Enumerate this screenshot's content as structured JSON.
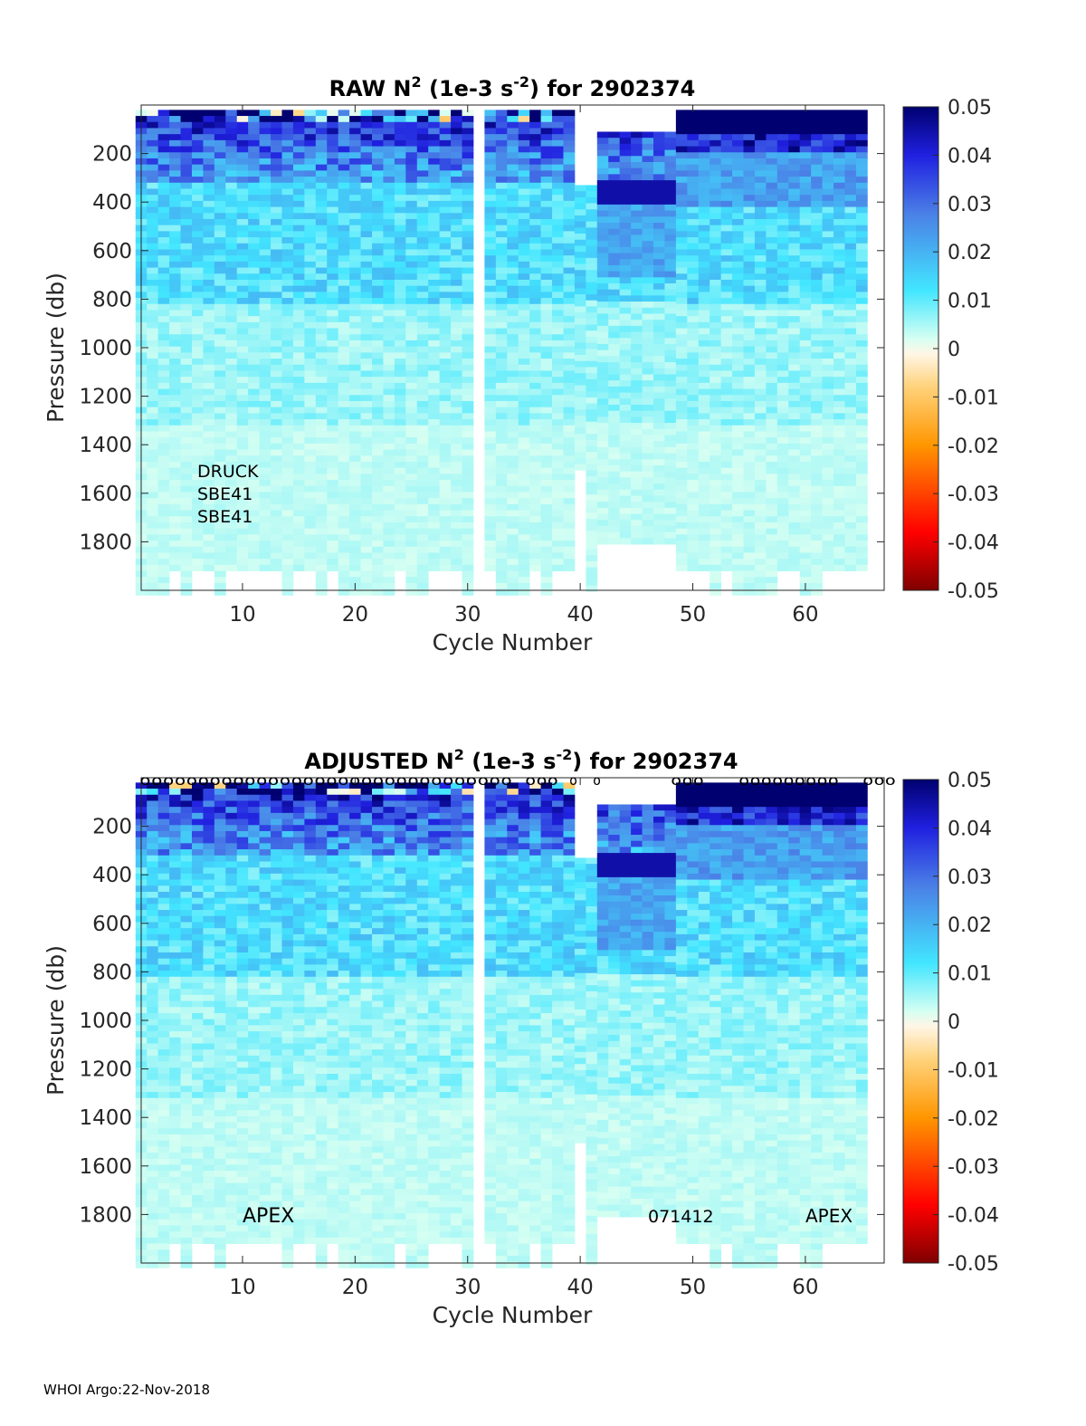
{
  "chart_data": [
    {
      "type": "heatmap",
      "title": "RAW N",
      "title_sup": "2",
      "title_units": " (1e-3 s",
      "title_units_sup": "-2",
      "title_tail": ") for 2902374",
      "xlabel": "Cycle Number",
      "ylabel": "Pressure (db)",
      "xlim": [
        1,
        67
      ],
      "ylim": [
        0,
        2000
      ],
      "xticks": [
        10,
        20,
        30,
        40,
        50,
        60
      ],
      "yticks": [
        200,
        400,
        600,
        800,
        1000,
        1200,
        1400,
        1600,
        1800
      ],
      "colorbar": {
        "min": -0.05,
        "max": 0.05,
        "ticks": [
          "0.05",
          "0.04",
          "0.03",
          "0.02",
          "0.01",
          "0",
          "-0.01",
          "-0.02",
          "-0.03",
          "-0.04",
          "-0.05"
        ]
      },
      "missing_cycles": [
        31
      ],
      "annotations": [
        "DRUCK",
        "SBE41",
        "SBE41"
      ],
      "markers": []
    },
    {
      "type": "heatmap",
      "title": "ADJUSTED N",
      "title_sup": "2",
      "title_units": " (1e-3 s",
      "title_units_sup": "-2",
      "title_tail": ") for 2902374",
      "xlabel": "Cycle Number",
      "ylabel": "Pressure (db)",
      "xlim": [
        1,
        67
      ],
      "ylim": [
        0,
        2000
      ],
      "xticks": [
        10,
        20,
        30,
        40,
        50,
        60
      ],
      "yticks": [
        200,
        400,
        600,
        800,
        1000,
        1200,
        1400,
        1600,
        1800
      ],
      "colorbar": {
        "min": -0.05,
        "max": 0.05,
        "ticks": [
          "0.05",
          "0.04",
          "0.03",
          "0.02",
          "0.01",
          "0",
          "-0.01",
          "-0.02",
          "-0.03",
          "-0.04",
          "-0.05"
        ]
      },
      "missing_cycles": [
        31
      ],
      "annotations": [
        "APEX",
        "071412",
        "APEX"
      ],
      "markers": [
        "oooooooooooooooooooooooooooooooo",
        "ooo",
        "o",
        "o",
        "ooo",
        "ooooooooo",
        "ooo"
      ]
    }
  ],
  "footer": "WHOI Argo:22-Nov-2018"
}
